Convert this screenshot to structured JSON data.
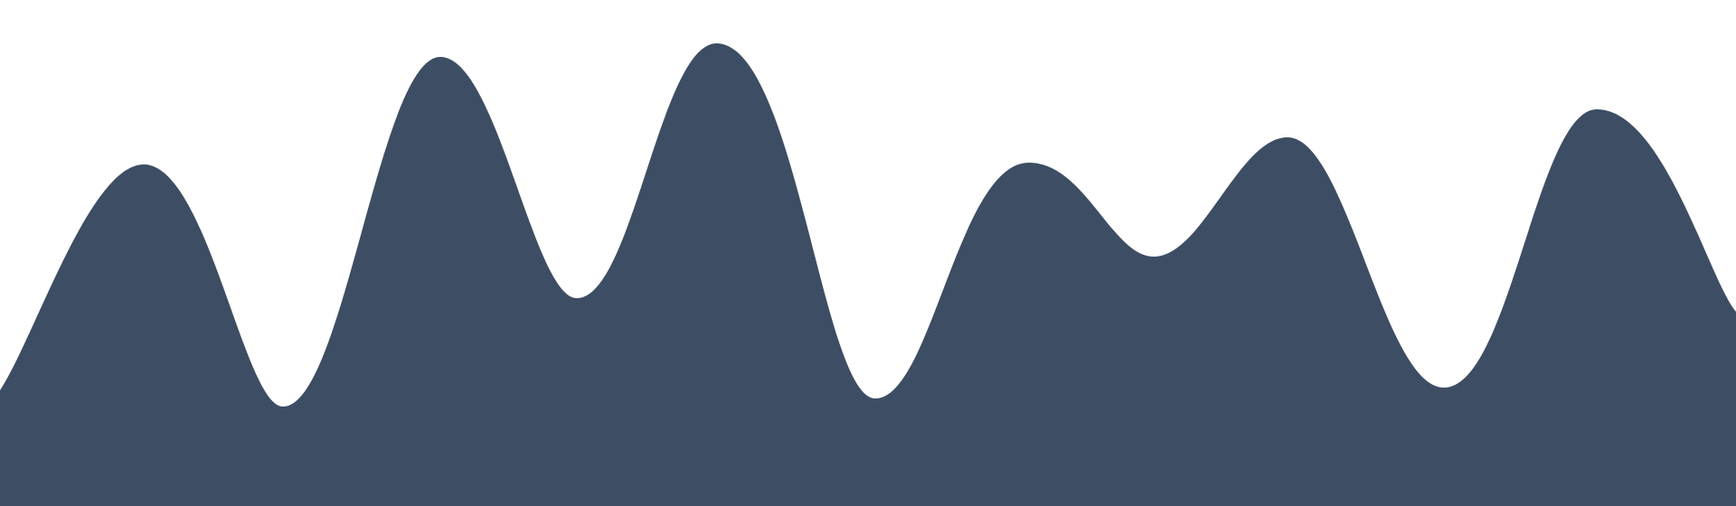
{
  "colors": {
    "background": "#ffffff",
    "wave_fill": "#3d4d63"
  },
  "shape": "decorative-wave"
}
